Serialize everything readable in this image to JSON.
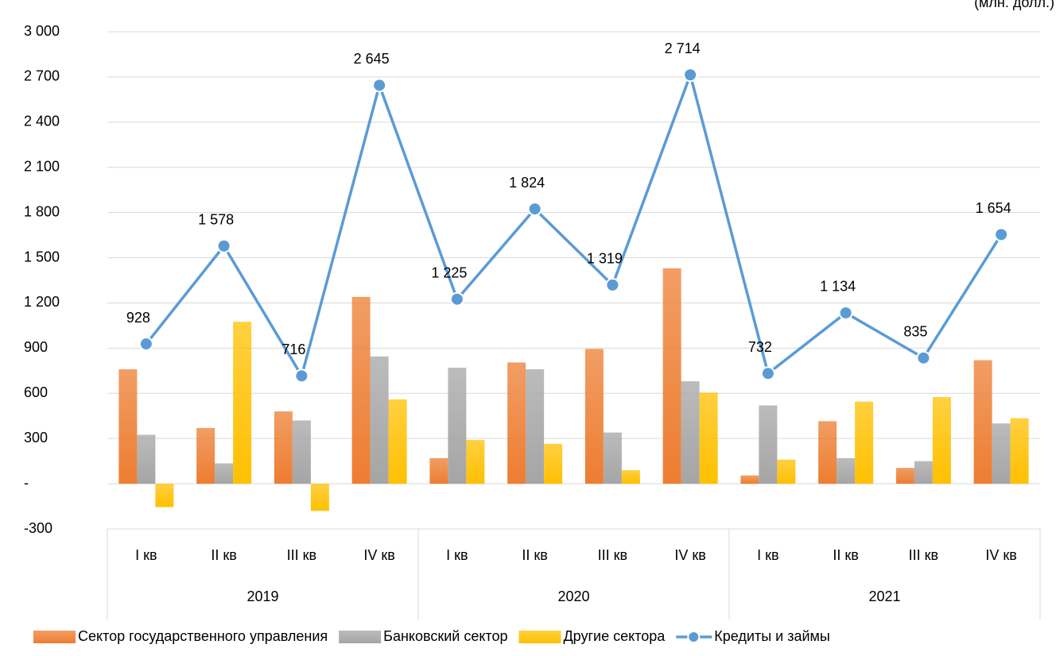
{
  "chart_data": {
    "type": "bar_line",
    "unit_label": "(млн. долл.)",
    "categories": [
      "I кв",
      "II кв",
      "III кв",
      "IV кв",
      "I кв",
      "II кв",
      "III кв",
      "IV кв",
      "I кв",
      "II кв",
      "III кв",
      "IV кв"
    ],
    "groups": [
      "2019",
      "2020",
      "2021"
    ],
    "series": [
      {
        "name": "Сектор государственного управления",
        "type": "bar",
        "color": "#ed7d31",
        "values": [
          760,
          370,
          480,
          1240,
          170,
          805,
          895,
          1430,
          55,
          415,
          105,
          820
        ]
      },
      {
        "name": "Банковский сектор",
        "type": "bar",
        "color": "#a5a5a5",
        "values": [
          325,
          135,
          420,
          845,
          770,
          760,
          340,
          680,
          520,
          170,
          150,
          400
        ]
      },
      {
        "name": "Другие сектора",
        "type": "bar",
        "color": "#ffc000",
        "values": [
          -155,
          1075,
          -180,
          560,
          290,
          265,
          90,
          605,
          160,
          545,
          575,
          435
        ]
      },
      {
        "name": "Кредиты и займы",
        "type": "line",
        "color": "#5b9bd5",
        "values": [
          928,
          1578,
          716,
          2645,
          1225,
          1824,
          1319,
          2714,
          732,
          1134,
          835,
          1654
        ],
        "value_labels": [
          "928",
          "1 578",
          "716",
          "2 645",
          "1 225",
          "1 824",
          "1 319",
          "2 714",
          "732",
          "1 134",
          "835",
          "1 654"
        ]
      }
    ],
    "ylim": [
      -300,
      3000
    ],
    "yticks": [
      -300,
      {
        "value": 0,
        "label": "-"
      },
      300,
      600,
      900,
      {
        "value": 1200,
        "label": "1 200"
      },
      {
        "value": 1500,
        "label": "1 500"
      },
      {
        "value": 1800,
        "label": "1 800"
      },
      {
        "value": 2100,
        "label": "2 100"
      },
      {
        "value": 2400,
        "label": "2 400"
      },
      {
        "value": 2700,
        "label": "2 700"
      },
      {
        "value": 3000,
        "label": "3 000"
      }
    ],
    "grid": true
  }
}
